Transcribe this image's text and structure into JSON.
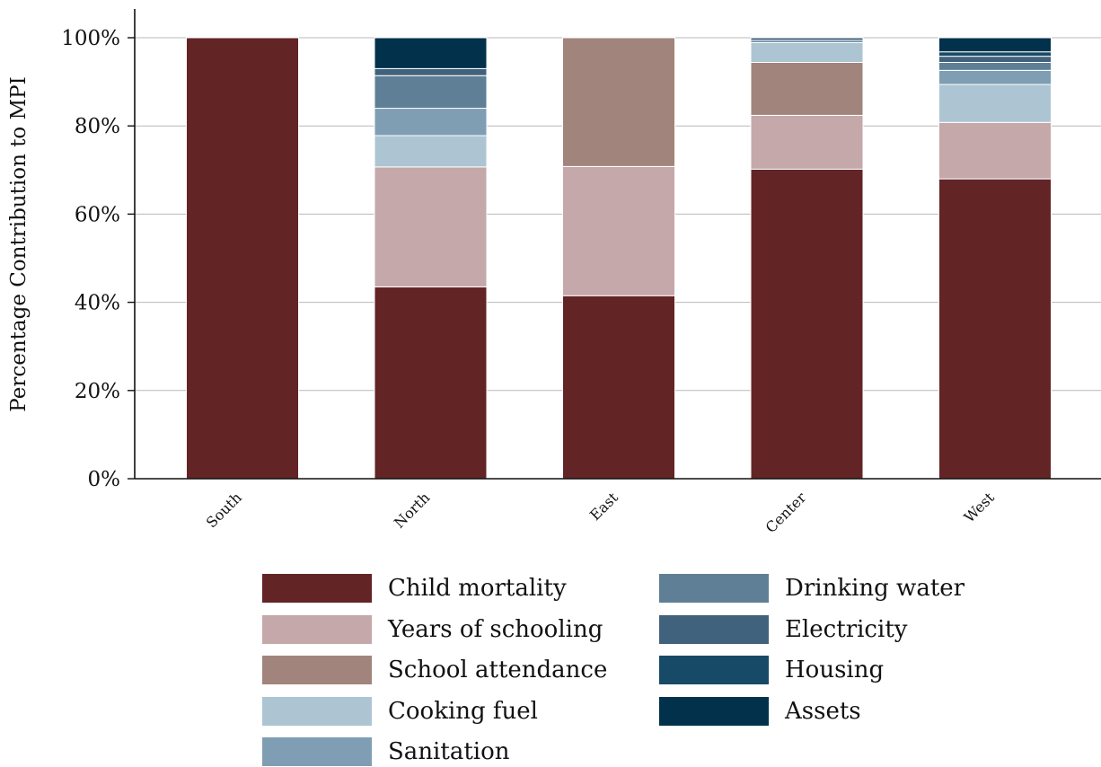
{
  "chart_data": {
    "type": "bar",
    "stacked": true,
    "ylabel": "Percentage Contribution to MPI",
    "xlabel": "",
    "ylim": [
      0,
      100
    ],
    "yticks": [
      "0%",
      "20%",
      "40%",
      "60%",
      "80%",
      "100%"
    ],
    "categories": [
      "South",
      "North",
      "East",
      "Center",
      "West"
    ],
    "grid": "horizontal",
    "legend_position": "bottom",
    "series": [
      {
        "name": "Child mortality",
        "color": "#632426",
        "values": [
          100,
          43.5,
          41.5,
          70.2,
          68.0
        ]
      },
      {
        "name": "Years of schooling",
        "color": "#c4a8aa",
        "values": [
          0,
          27.2,
          29.3,
          12.2,
          12.8
        ]
      },
      {
        "name": "School attendance",
        "color": "#a1847c",
        "values": [
          0,
          0,
          29.2,
          12.0,
          0
        ]
      },
      {
        "name": "Cooking fuel",
        "color": "#adc5d3",
        "values": [
          0,
          7.1,
          0,
          4.5,
          8.6
        ]
      },
      {
        "name": "Sanitation",
        "color": "#7f9eb4",
        "values": [
          0,
          6.2,
          0,
          0,
          3.2
        ]
      },
      {
        "name": "Drinking water",
        "color": "#5e7f96",
        "values": [
          0,
          7.4,
          0,
          0.5,
          1.8
        ]
      },
      {
        "name": "Electricity",
        "color": "#41627c",
        "values": [
          0,
          1.6,
          0,
          0.6,
          1.4
        ]
      },
      {
        "name": "Housing",
        "color": "#174a66",
        "values": [
          0,
          0,
          0,
          0,
          1.0
        ]
      },
      {
        "name": "Assets",
        "color": "#02324b",
        "values": [
          0,
          7.0,
          0,
          0,
          3.2
        ]
      }
    ]
  }
}
